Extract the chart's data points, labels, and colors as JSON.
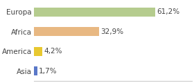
{
  "categories": [
    "Europa",
    "Africa",
    "America",
    "Asia"
  ],
  "values": [
    61.2,
    32.9,
    4.2,
    1.7
  ],
  "labels": [
    "61,2%",
    "32,9%",
    "4,2%",
    "1,7%"
  ],
  "bar_colors": [
    "#b5cc8e",
    "#e8b882",
    "#e8c830",
    "#5a78c8"
  ],
  "background_color": "#ffffff",
  "xlim": [
    0,
    80
  ],
  "bar_height": 0.45,
  "label_fontsize": 7.5,
  "tick_fontsize": 7.5,
  "grid_color": "#dddddd"
}
